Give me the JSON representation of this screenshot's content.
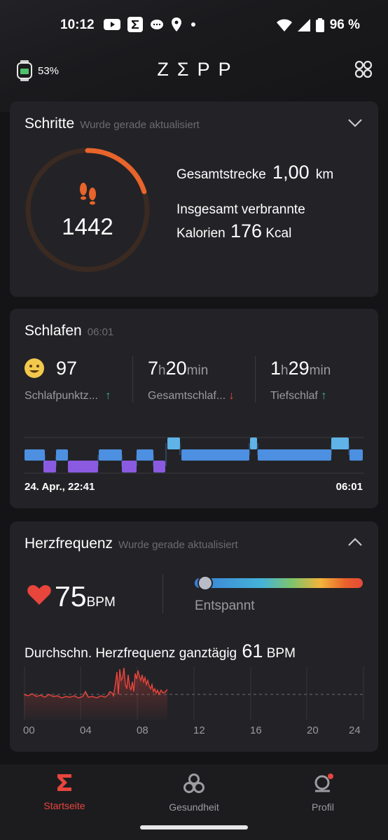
{
  "status_bar": {
    "time": "10:12",
    "battery": "96 %"
  },
  "header": {
    "watch_battery": "53%",
    "logo": "ZΣPP"
  },
  "steps": {
    "title": "Schritte",
    "updated": "Wurde gerade aktualisiert",
    "count": "1442",
    "distance_label": "Gesamtstrecke",
    "distance_value": "1,00",
    "distance_unit": "km",
    "calories_label_1": "Insgesamt verbrannte",
    "calories_label_2": "Kalorien",
    "calories_value": "176",
    "calories_unit": "Kcal",
    "ring_progress": 0.2
  },
  "sleep": {
    "title": "Schlafen",
    "time": "06:01",
    "score": "97",
    "score_label": "Schlafpunktz...",
    "total_h": "7",
    "total_min": "20",
    "total_label": "Gesamtschlaf...",
    "deep_h": "1",
    "deep_min": "29",
    "deep_label": "Tiefschlaf",
    "h_unit": "h",
    "min_unit": "min",
    "start": "24. Apr., 22:41",
    "end": "06:01"
  },
  "heart": {
    "title": "Herzfrequenz",
    "updated": "Wurde gerade aktualisiert",
    "bpm": "75",
    "bpm_unit": "BPM",
    "zone": "Entspannt",
    "avg_label": "Durchschn. Herzfrequenz ganztägig",
    "avg_value": "61",
    "avg_unit": "BPM",
    "x_ticks": [
      "00",
      "04",
      "08",
      "12",
      "16",
      "20",
      "24"
    ]
  },
  "nav": {
    "home": "Startseite",
    "health": "Gesundheit",
    "profile": "Profil"
  },
  "colors": {
    "accent": "#e8453c",
    "steps_ring": "#e8642a",
    "sleep_light": "#4d8fe0",
    "sleep_awake": "#5fb3e6",
    "sleep_deep": "#8a5ae0"
  }
}
